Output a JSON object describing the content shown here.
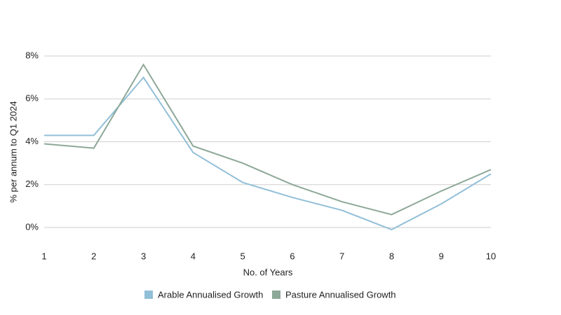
{
  "chart_data": {
    "type": "line",
    "x_label": "No. of Years",
    "y_label": "% per annum to Q1 2024",
    "x": [
      1,
      2,
      3,
      4,
      5,
      6,
      7,
      8,
      9,
      10
    ],
    "xlim": [
      1,
      10
    ],
    "xticks": [
      1,
      2,
      3,
      4,
      5,
      6,
      7,
      8,
      9,
      10
    ],
    "ylim": [
      -0.9,
      8.4
    ],
    "yticks": [
      {
        "value": 0,
        "label": "0%"
      },
      {
        "value": 2,
        "label": "2%"
      },
      {
        "value": 4,
        "label": "4%"
      },
      {
        "value": 6,
        "label": "6%"
      },
      {
        "value": 8,
        "label": "8%"
      }
    ],
    "grid": true,
    "legend": "bottom",
    "series": [
      {
        "name": "Arable Annualised Growth",
        "color": "#92bfd8",
        "values": [
          4.3,
          4.3,
          7.0,
          3.5,
          2.1,
          1.4,
          0.8,
          -0.1,
          1.1,
          2.5
        ]
      },
      {
        "name": "Pasture Annualised Growth",
        "color": "#8da898",
        "values": [
          3.9,
          3.7,
          7.6,
          3.8,
          3.0,
          2.0,
          1.2,
          0.6,
          1.7,
          2.7
        ]
      }
    ]
  }
}
